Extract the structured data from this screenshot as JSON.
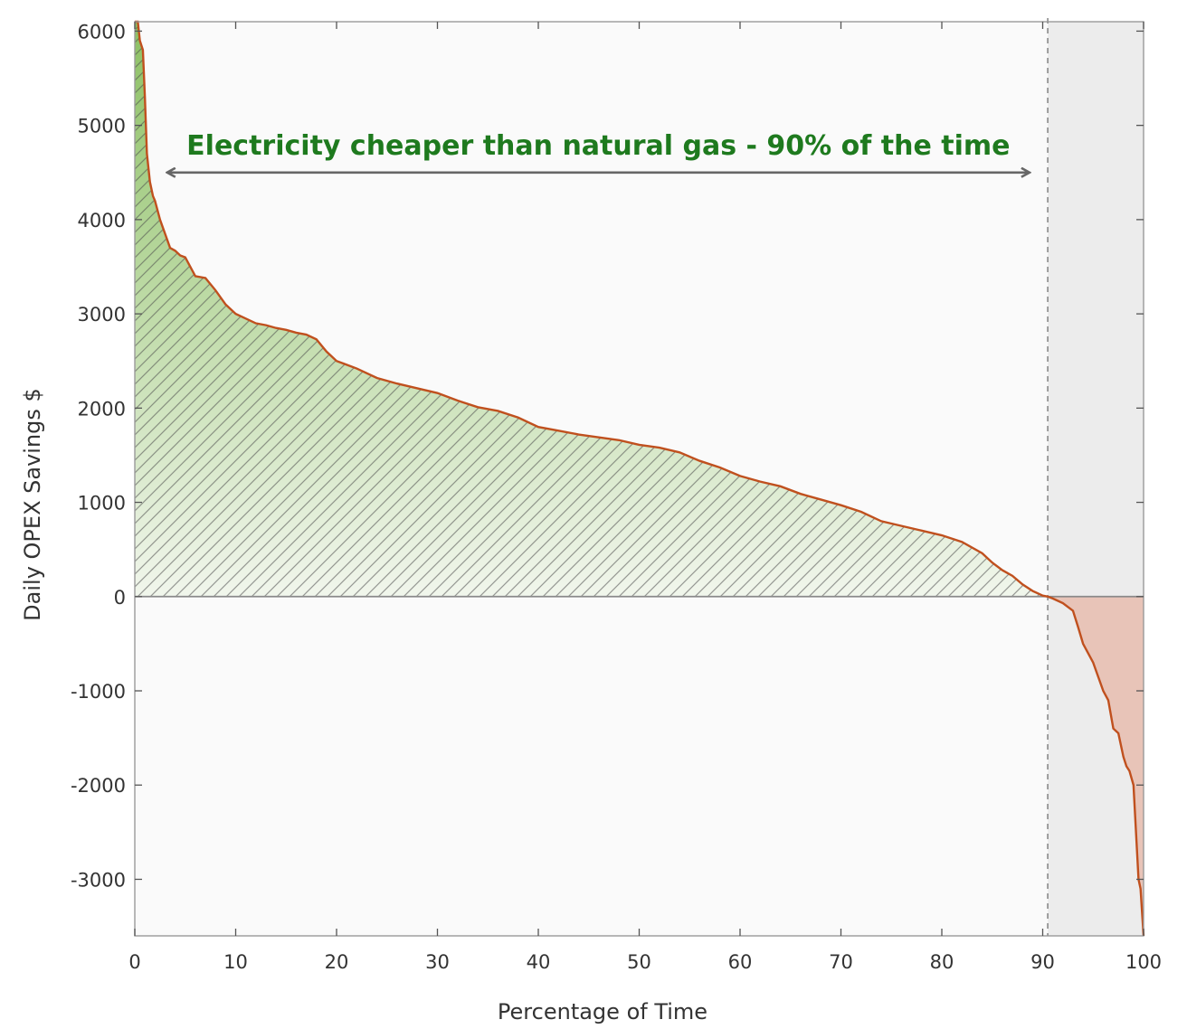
{
  "chart_data": {
    "type": "area",
    "xlabel": "Percentage of Time",
    "ylabel": "Daily OPEX Savings $",
    "xlim": [
      0,
      100
    ],
    "ylim": [
      -3600,
      6100
    ],
    "xticks": [
      0,
      10,
      20,
      30,
      40,
      50,
      60,
      70,
      80,
      90,
      100
    ],
    "yticks": [
      -3000,
      -2000,
      -1000,
      0,
      1000,
      2000,
      3000,
      4000,
      5000,
      6000
    ],
    "grid": false,
    "annotation": {
      "text": "Electricity cheaper than natural gas - 90% of the time",
      "x_start": 3.3,
      "x_end": 88.6,
      "y": 4500
    },
    "threshold_x": 90.5,
    "colors": {
      "line": "#c0501e",
      "positive_fill_top": "#8cc063",
      "positive_fill_bottom": "#f1f6ec",
      "negative_fill": "#e8c4b8",
      "shaded_region": "#ececec",
      "annotation": "#1e7a1e",
      "arrow": "#666666"
    },
    "series": [
      {
        "x": [
          0,
          0.3,
          0.5,
          0.8,
          1.0,
          1.2,
          1.5,
          1.8,
          2.0,
          2.3,
          2.5,
          3.0,
          3.5,
          4.0,
          4.5,
          5.0,
          6.0,
          7.0,
          8.0,
          9.0,
          10.0,
          11.0,
          12.0,
          13.0,
          14.0,
          15.0,
          16.0,
          17.0,
          18.0,
          19.0,
          20.0,
          22.0,
          24.0,
          26.0,
          28.0,
          30.0,
          32.0,
          34.0,
          36.0,
          38.0,
          40.0,
          42.0,
          44.0,
          46.0,
          48.0,
          50.0,
          52.0,
          54.0,
          56.0,
          58.0,
          60.0,
          62.0,
          64.0,
          66.0,
          68.0,
          70.0,
          72.0,
          74.0,
          76.0,
          78.0,
          80.0,
          82.0,
          84.0,
          85.0,
          86.0,
          87.0,
          88.0,
          89.0,
          90.0,
          90.5,
          91.0,
          92.0,
          93.0,
          93.5,
          94.0,
          94.5,
          95.0,
          95.5,
          96.0,
          96.5,
          97.0,
          97.5,
          98.0,
          98.3,
          98.6,
          99.0,
          99.3,
          99.5,
          99.7,
          100.0
        ],
        "y": [
          6100,
          6100,
          5900,
          5800,
          5300,
          4700,
          4400,
          4250,
          4200,
          4080,
          4000,
          3850,
          3700,
          3670,
          3620,
          3600,
          3400,
          3380,
          3250,
          3100,
          3000,
          2950,
          2900,
          2880,
          2850,
          2830,
          2800,
          2780,
          2730,
          2600,
          2500,
          2420,
          2320,
          2260,
          2210,
          2160,
          2080,
          2010,
          1970,
          1900,
          1800,
          1760,
          1720,
          1690,
          1660,
          1610,
          1580,
          1530,
          1440,
          1370,
          1280,
          1220,
          1170,
          1090,
          1030,
          970,
          900,
          800,
          750,
          700,
          650,
          580,
          460,
          360,
          280,
          220,
          130,
          60,
          10,
          0,
          -20,
          -70,
          -150,
          -320,
          -500,
          -600,
          -700,
          -850,
          -1000,
          -1100,
          -1400,
          -1450,
          -1700,
          -1800,
          -1850,
          -2000,
          -2600,
          -3000,
          -3100,
          -3600
        ]
      }
    ]
  }
}
